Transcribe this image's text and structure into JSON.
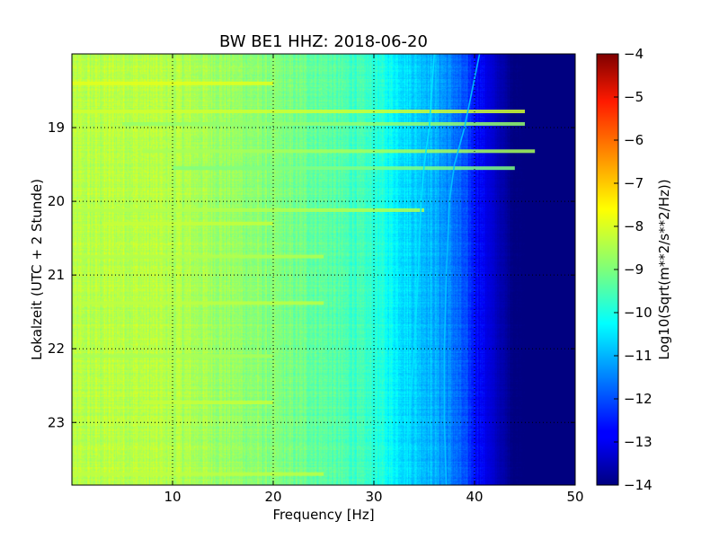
{
  "chart_data": {
    "type": "heatmap",
    "title": "BW BE1 HHZ: 2018-06-20",
    "xlabel": "Frequency [Hz]",
    "ylabel": "Lokalzeit (UTC + 2 Stunde)",
    "colorbar_label": "Log10(Sqrt(m**2/s**2/Hz))",
    "xlim": [
      0,
      50
    ],
    "ylim": [
      23.85,
      18.0
    ],
    "y_inverted": true,
    "x_ticks": [
      10,
      20,
      30,
      40,
      50
    ],
    "x_tick_labels": [
      "10",
      "20",
      "30",
      "40",
      "50"
    ],
    "y_ticks": [
      19,
      20,
      21,
      22,
      23
    ],
    "y_tick_labels": [
      "19",
      "20",
      "21",
      "22",
      "23"
    ],
    "colorbar_range": [
      -14,
      -4
    ],
    "colorbar_ticks": [
      -4,
      -5,
      -6,
      -7,
      -8,
      -9,
      -10,
      -11,
      -12,
      -13,
      -14
    ],
    "colorbar_tick_labels": [
      "−4",
      "−5",
      "−6",
      "−7",
      "−8",
      "−9",
      "−10",
      "−11",
      "−12",
      "−13",
      "−14"
    ],
    "colormap": "jet",
    "grid": true,
    "grid_style": "dotted",
    "frequency_profile": {
      "frequencies": [
        0,
        5,
        10,
        15,
        20,
        25,
        30,
        33,
        36,
        38,
        40,
        42,
        44,
        46,
        50
      ],
      "values": [
        -8.5,
        -8.4,
        -8.5,
        -8.7,
        -9.0,
        -9.3,
        -9.8,
        -10.5,
        -11.0,
        -11.6,
        -12.5,
        -13.3,
        -14,
        -14,
        -14
      ]
    },
    "horizontal_streaks": [
      {
        "time": 18.4,
        "value": -8.0,
        "f_start": 0,
        "f_end": 20
      },
      {
        "time": 18.78,
        "value": -8.2,
        "f_start": 0,
        "f_end": 45
      },
      {
        "time": 18.95,
        "value": -8.8,
        "f_start": 5,
        "f_end": 45
      },
      {
        "time": 19.32,
        "value": -8.6,
        "f_start": 7,
        "f_end": 46
      },
      {
        "time": 19.55,
        "value": -9.0,
        "f_start": 10,
        "f_end": 44
      },
      {
        "time": 20.12,
        "value": -8.5,
        "f_start": 0,
        "f_end": 35
      },
      {
        "time": 20.3,
        "value": -8.3,
        "f_start": 3,
        "f_end": 20
      },
      {
        "time": 20.75,
        "value": -8.5,
        "f_start": 0,
        "f_end": 25
      },
      {
        "time": 21.38,
        "value": -8.4,
        "f_start": 0,
        "f_end": 25
      },
      {
        "time": 22.1,
        "value": -8.6,
        "f_start": 0,
        "f_end": 20
      },
      {
        "time": 22.73,
        "value": -8.3,
        "f_start": 7,
        "f_end": 20
      },
      {
        "time": 23.7,
        "value": -8.4,
        "f_start": 0,
        "f_end": 25
      }
    ],
    "tonal_lines": [
      {
        "times": [
          18.0,
          19.0,
          19.5,
          20.0,
          21.0,
          22.0,
          23.0,
          23.85
        ],
        "frequencies": [
          36.0,
          35.5,
          35.0,
          34.7,
          34.4,
          34.0,
          33.5,
          33.0
        ],
        "value": -10.5
      },
      {
        "times": [
          18.0,
          19.0,
          19.5,
          20.0,
          21.0,
          22.0,
          23.0,
          23.85
        ],
        "frequencies": [
          40.5,
          39.0,
          38.0,
          37.5,
          37.2,
          37.0,
          37.0,
          37.2
        ],
        "value": -10.8
      }
    ]
  }
}
